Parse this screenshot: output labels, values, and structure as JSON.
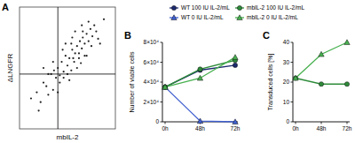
{
  "chart_data": [
    {
      "type": "scatter",
      "title": "A",
      "x_label": "mbIL-2",
      "y_label": "ΔLNGFR",
      "xlim": [
        0,
        100
      ],
      "ylim": [
        0,
        100
      ],
      "tick_labels": false,
      "color": "#222222",
      "gate_x": 40,
      "gate_y": 45,
      "x": [
        12,
        18,
        22,
        25,
        28,
        30,
        33,
        35,
        38,
        40,
        42,
        44,
        46,
        48,
        50,
        52,
        54,
        55,
        57,
        58,
        60,
        62,
        63,
        65,
        66,
        68,
        70,
        72,
        74,
        76,
        78,
        80,
        35,
        45,
        55,
        65,
        50,
        60,
        70,
        40,
        30,
        20,
        25,
        48,
        58,
        68,
        75,
        82,
        62,
        52,
        42,
        36,
        56,
        66,
        72,
        46,
        54,
        64,
        84,
        88
      ],
      "y": [
        25,
        30,
        22,
        38,
        35,
        28,
        45,
        32,
        42,
        50,
        38,
        55,
        47,
        60,
        52,
        58,
        48,
        65,
        55,
        62,
        68,
        58,
        72,
        66,
        75,
        70,
        78,
        72,
        82,
        76,
        85,
        80,
        55,
        65,
        75,
        85,
        45,
        50,
        60,
        30,
        45,
        15,
        50,
        70,
        80,
        60,
        68,
        74,
        62,
        40,
        44,
        48,
        58,
        80,
        88,
        42,
        70,
        54,
        70,
        90
      ]
    },
    {
      "type": "line",
      "title": "B",
      "y_label": "Number of viable cells",
      "categories": [
        "0h",
        "48h",
        "72h"
      ],
      "ylim": [
        0,
        80000
      ],
      "yticks": [
        0,
        {
          "value": 20000,
          "label": "2×10⁴"
        },
        {
          "value": 40000,
          "label": "4×10⁴"
        },
        {
          "value": 60000,
          "label": "6×10⁴"
        },
        {
          "value": 80000,
          "label": "8×10⁴"
        }
      ],
      "legend": "top",
      "series": [
        {
          "name": "WT 100 IU IL-2/mL",
          "color": "#1c2a6e",
          "marker": "circle",
          "values": [
            35000,
            52000,
            57000
          ]
        },
        {
          "name": "WT 0 IU IL-2/mL",
          "color": "#3f5fd0",
          "marker": "triangle",
          "values": [
            35000,
            800,
            0
          ]
        },
        {
          "name": "mbIL-2 100 IU IL-2/mL",
          "color": "#2e8b3a",
          "marker": "circle",
          "values": [
            35000,
            53000,
            62000
          ]
        },
        {
          "name": "mbIL-2 0 IU IL-2/mL",
          "color": "#47b04f",
          "marker": "triangle",
          "values": [
            35000,
            44000,
            65000
          ]
        }
      ]
    },
    {
      "type": "line",
      "title": "C",
      "y_label": "Transduced cells [%]",
      "categories": [
        "0h",
        "48h",
        "72h"
      ],
      "ylim": [
        0,
        40
      ],
      "yticks": [
        0,
        10,
        20,
        30,
        40
      ],
      "series": [
        {
          "color": "#2e8b3a",
          "marker": "circle",
          "values": [
            22,
            19,
            19
          ]
        },
        {
          "color": "#47b04f",
          "marker": "triangle",
          "values": [
            22,
            34,
            40
          ]
        }
      ]
    }
  ]
}
